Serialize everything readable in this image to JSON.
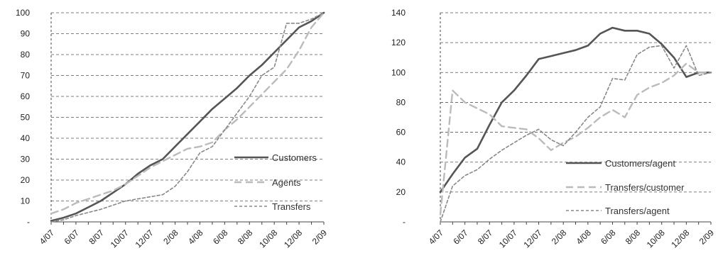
{
  "chart_data": [
    {
      "type": "line",
      "title": "",
      "xlabel": "",
      "ylabel": "",
      "ylim": [
        0,
        100
      ],
      "yticks": [
        "-",
        "10",
        "20",
        "30",
        "40",
        "50",
        "60",
        "70",
        "80",
        "90",
        "100"
      ],
      "x": [
        "4/07",
        "5/07",
        "6/07",
        "7/07",
        "8/07",
        "9/07",
        "10/07",
        "11/07",
        "12/07",
        "1/08",
        "2/08",
        "3/08",
        "4/08",
        "5/08",
        "6/08",
        "7/08",
        "8/08",
        "9/08",
        "10/08",
        "11/08",
        "12/08",
        "1/09",
        "2/09"
      ],
      "xtick_labels": [
        "4/07",
        "6/07",
        "8/07",
        "10/07",
        "12/07",
        "2/08",
        "4/08",
        "6/08",
        "8/08",
        "10/08",
        "12/08",
        "2/09"
      ],
      "grid": "horizontal dashed",
      "legend_position": "right",
      "series": [
        {
          "name": "Customers",
          "style": "solid",
          "color": "#555555",
          "values": [
            0.5,
            2,
            4,
            7,
            10,
            14,
            18,
            23,
            27,
            30,
            36,
            42,
            48,
            54,
            59,
            64,
            70,
            75,
            81,
            87,
            93,
            96,
            100
          ]
        },
        {
          "name": "Agents",
          "style": "long-dash",
          "color": "#bbbbbb",
          "values": [
            4,
            6,
            9,
            11,
            13,
            15,
            18,
            22,
            26,
            29,
            32,
            35,
            36,
            38,
            44,
            49,
            55,
            61,
            67,
            73,
            82,
            93,
            100
          ]
        },
        {
          "name": "Transfers",
          "style": "dash",
          "color": "#888888",
          "values": [
            0,
            1,
            3,
            4.5,
            6,
            8,
            10,
            11,
            12,
            13,
            17,
            24,
            33,
            36,
            44,
            52,
            60,
            70,
            74,
            95,
            95,
            97,
            100
          ]
        }
      ]
    },
    {
      "type": "line",
      "title": "",
      "xlabel": "",
      "ylabel": "",
      "ylim": [
        0,
        140
      ],
      "yticks": [
        "-",
        "20",
        "40",
        "60",
        "80",
        "100",
        "120",
        "140"
      ],
      "x": [
        "4/07",
        "5/07",
        "6/07",
        "7/07",
        "8/07",
        "9/07",
        "10/07",
        "11/07",
        "12/07",
        "1/08",
        "2/08",
        "3/08",
        "4/08",
        "5/08",
        "6/08",
        "7/08",
        "8/08",
        "9/08",
        "10/08",
        "11/08",
        "12/08",
        "1/09",
        "2/09"
      ],
      "xtick_labels": [
        "4/07",
        "6/07",
        "8/07",
        "10/07",
        "12/07",
        "2/08",
        "4/08",
        "6/08",
        "8/08",
        "10/08",
        "12/08",
        "2/09"
      ],
      "grid": "horizontal dashed",
      "legend_position": "bottom-right",
      "series": [
        {
          "name": "Customers/agent",
          "style": "solid",
          "color": "#555555",
          "values": [
            20,
            32,
            43,
            49,
            65,
            80,
            88,
            98,
            109,
            111,
            113,
            115,
            118,
            126,
            130,
            128,
            128,
            126,
            119,
            110,
            97,
            100,
            100
          ]
        },
        {
          "name": "Transfers/customer",
          "style": "long-dash",
          "color": "#bbbbbb",
          "values": [
            5,
            88,
            80,
            76,
            72,
            64,
            63,
            62,
            56,
            48,
            53,
            57,
            63,
            70,
            75,
            70,
            85,
            90,
            93,
            98,
            106,
            100,
            100
          ]
        },
        {
          "name": "Transfers/agent",
          "style": "dash",
          "color": "#888888",
          "values": [
            0,
            24,
            31,
            35,
            42,
            48,
            53,
            58,
            62,
            55,
            51,
            60,
            70,
            77,
            96,
            95,
            112,
            117,
            118,
            103,
            118,
            98,
            100
          ]
        }
      ]
    }
  ]
}
